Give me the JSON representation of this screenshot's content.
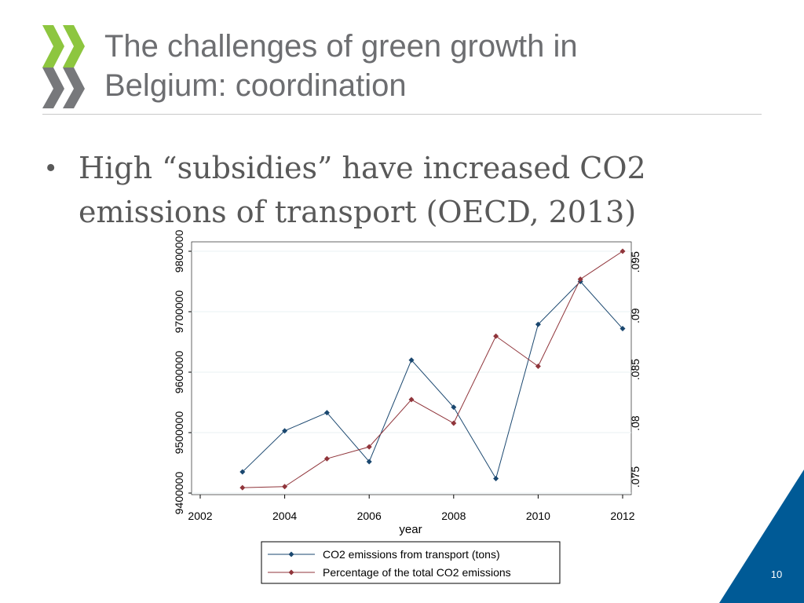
{
  "slide": {
    "title_line1": "The challenges of green growth in",
    "title_line2": "Belgium: coordination",
    "bullet_text": "High “subsidies” have increased CO2 emissions of transport (OECD, 2013)",
    "page_number": "10"
  },
  "colors": {
    "title": "#6d6e71",
    "logo_green": "#8dc63f",
    "logo_gray": "#77787b",
    "corner_blue": "#005a96",
    "series_co2": "#1a476f",
    "series_pct": "#90353b"
  },
  "chart_data": {
    "type": "line",
    "xlabel": "year",
    "x_ticks": [
      "2002",
      "2004",
      "2006",
      "2008",
      "2010",
      "2012"
    ],
    "xlim": [
      2002,
      2012
    ],
    "y_left": {
      "label": "",
      "ylim": [
        9400000,
        9800000
      ],
      "ticks": [
        "9400000",
        "9500000",
        "9600000",
        "9700000",
        "9800000"
      ]
    },
    "y_right": {
      "label": "",
      "ylim": [
        0.0735,
        0.096
      ],
      "ticks": [
        ".075",
        ".08",
        ".085",
        ".09",
        ".095"
      ]
    },
    "x": [
      2003,
      2004,
      2005,
      2006,
      2007,
      2008,
      2009,
      2010,
      2011,
      2012
    ],
    "series": [
      {
        "name": "CO2 emissions from transport (tons)",
        "axis": "left",
        "values": [
          9435000,
          9503000,
          9533000,
          9452000,
          9620000,
          9542000,
          9424000,
          9679000,
          9750000,
          9672000
        ]
      },
      {
        "name": "Percentage of the total CO2 emissions",
        "axis": "right",
        "values": [
          0.074,
          0.0741,
          0.0767,
          0.0778,
          0.0822,
          0.08,
          0.0881,
          0.0853,
          0.0934,
          0.096
        ]
      }
    ],
    "legend_position": "bottom",
    "grid": true
  }
}
